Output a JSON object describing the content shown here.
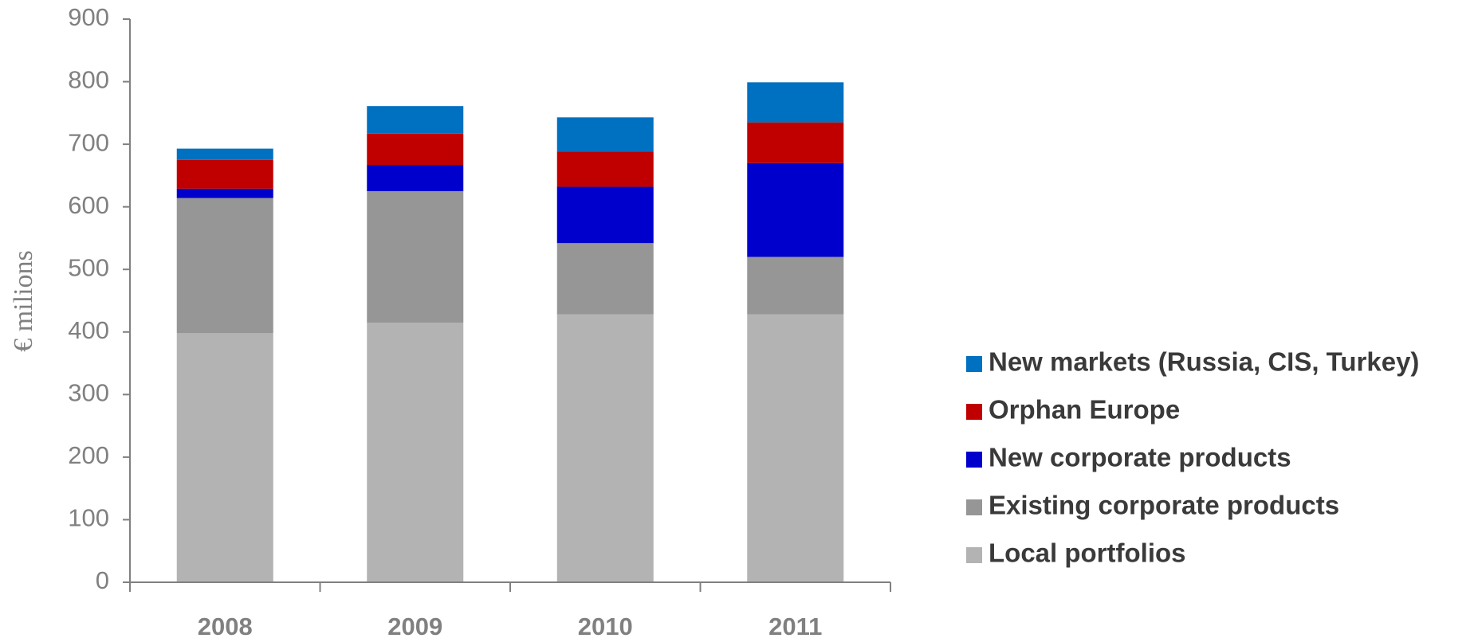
{
  "chart_data": {
    "type": "stacked_bar",
    "ylabel": "€ milions",
    "categories": [
      "2008",
      "2009",
      "2010",
      "2011"
    ],
    "series": [
      {
        "name": "Local portfolios",
        "color": "#b3b3b3",
        "values": [
          398,
          415,
          428,
          428
        ]
      },
      {
        "name": "Existing corporate products",
        "color": "#969696",
        "values": [
          216,
          210,
          114,
          92
        ]
      },
      {
        "name": "New corporate products",
        "color": "#0000cc",
        "values": [
          15,
          42,
          90,
          150
        ]
      },
      {
        "name": "Orphan Europe",
        "color": "#c00000",
        "values": [
          46,
          50,
          56,
          65
        ]
      },
      {
        "name": "New markets (Russia, CIS, Turkey)",
        "color": "#0070c0",
        "values": [
          18,
          44,
          55,
          64
        ]
      }
    ],
    "ylim": [
      0,
      900
    ],
    "yticks": [
      0,
      100,
      200,
      300,
      400,
      500,
      600,
      700,
      800,
      900
    ],
    "legend": "right"
  }
}
